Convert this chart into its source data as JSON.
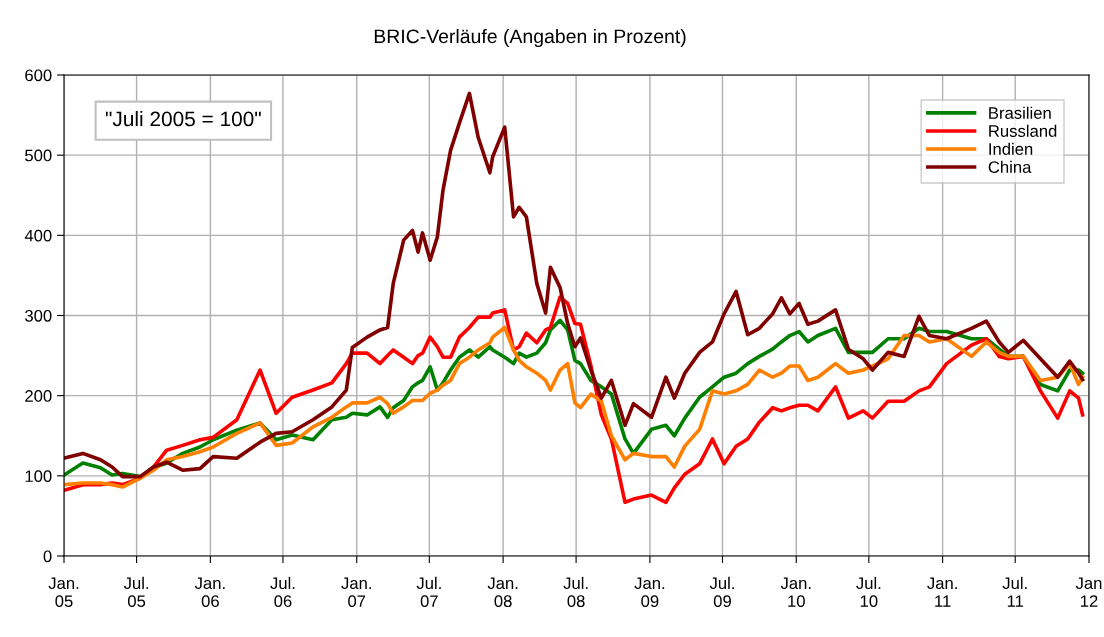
{
  "chart_data": {
    "type": "line",
    "title": "BRIC-Verläufe (Angaben in Prozent)",
    "annotations": [
      "\"Juli 2005 = 100\""
    ],
    "x": [
      "2005-01-01",
      "2005-02-17",
      "2005-04-02",
      "2005-05-01",
      "2005-05-27",
      "2005-07-10",
      "2005-08-12",
      "2005-09-14",
      "2005-10-24",
      "2005-12-06",
      "2006-01-08",
      "2006-03-08",
      "2006-05-05",
      "2006-06-14",
      "2006-07-24",
      "2006-09-14",
      "2006-10-31",
      "2006-12-06",
      "2006-12-21",
      "2007-01-27",
      "2007-02-28",
      "2007-03-19",
      "2007-04-02",
      "2007-04-28",
      "2007-05-20",
      "2007-06-03",
      "2007-06-14",
      "2007-07-03",
      "2007-07-21",
      "2007-08-04",
      "2007-08-23",
      "2007-09-14",
      "2007-10-09",
      "2007-10-31",
      "2007-11-29",
      "2007-12-06",
      "2008-01-05",
      "2008-01-27",
      "2008-02-10",
      "2008-02-28",
      "2008-03-25",
      "2008-04-16",
      "2008-04-28",
      "2008-05-22",
      "2008-06-10",
      "2008-06-28",
      "2008-07-12",
      "2008-08-07",
      "2008-09-02",
      "2008-09-27",
      "2008-10-31",
      "2008-11-21",
      "2009-01-05",
      "2009-02-10",
      "2009-03-03",
      "2009-03-29",
      "2009-05-05",
      "2009-06-06",
      "2009-07-05",
      "2009-08-04",
      "2009-09-02",
      "2009-10-01",
      "2009-11-03",
      "2009-11-25",
      "2009-12-16",
      "2010-01-08",
      "2010-01-30",
      "2010-02-24",
      "2010-04-09",
      "2010-05-11",
      "2010-06-17",
      "2010-07-10",
      "2010-08-18",
      "2010-09-27",
      "2010-11-03",
      "2010-11-29",
      "2011-01-11",
      "2011-03-14",
      "2011-04-20",
      "2011-05-22",
      "2011-06-14",
      "2011-07-21",
      "2011-09-02",
      "2011-10-15",
      "2011-11-14",
      "2011-12-06",
      "2011-12-16"
    ],
    "series": [
      {
        "name": "Brasilien",
        "color": "#008000",
        "values": [
          101,
          116,
          110,
          101,
          103,
          99,
          110,
          116,
          128,
          136,
          145,
          157,
          166,
          145,
          151,
          145,
          170,
          173,
          178,
          176,
          186,
          173,
          185,
          194,
          211,
          216,
          219,
          236,
          207,
          216,
          232,
          248,
          257,
          248,
          261,
          257,
          248,
          240,
          253,
          248,
          253,
          266,
          282,
          294,
          282,
          244,
          240,
          219,
          211,
          202,
          146,
          128,
          158,
          163,
          150,
          172,
          198,
          211,
          223,
          228,
          240,
          249,
          258,
          267,
          275,
          280,
          267,
          275,
          284,
          254,
          254,
          254,
          271,
          271,
          284,
          280,
          280,
          271,
          271,
          258,
          249,
          249,
          214,
          206,
          232,
          232,
          228
        ]
      },
      {
        "name": "Russland",
        "color": "#ff0000",
        "values": [
          82,
          89,
          89,
          91,
          89,
          97,
          111,
          132,
          138,
          145,
          148,
          170,
          232,
          178,
          198,
          207,
          216,
          240,
          253,
          253,
          240,
          250,
          257,
          248,
          240,
          250,
          253,
          273,
          261,
          248,
          248,
          273,
          285,
          298,
          298,
          303,
          307,
          257,
          261,
          278,
          266,
          282,
          285,
          323,
          315,
          290,
          289,
          237,
          176,
          146,
          67,
          71,
          76,
          67,
          85,
          102,
          115,
          146,
          115,
          137,
          146,
          167,
          185,
          181,
          185,
          188,
          188,
          181,
          211,
          172,
          181,
          172,
          193,
          193,
          206,
          211,
          240,
          263,
          271,
          249,
          246,
          249,
          206,
          172,
          206,
          197,
          176
        ]
      },
      {
        "name": "Indien",
        "color": "#ff7f00",
        "values": [
          89,
          91,
          91,
          89,
          86,
          97,
          107,
          120,
          124,
          130,
          136,
          153,
          166,
          138,
          141,
          161,
          173,
          186,
          191,
          191,
          198,
          190,
          178,
          186,
          194,
          194,
          194,
          203,
          207,
          213,
          219,
          240,
          248,
          257,
          266,
          273,
          285,
          257,
          244,
          236,
          228,
          219,
          207,
          232,
          240,
          191,
          185,
          202,
          193,
          150,
          120,
          128,
          124,
          124,
          111,
          137,
          158,
          206,
          202,
          206,
          214,
          232,
          223,
          228,
          237,
          237,
          219,
          223,
          240,
          228,
          232,
          237,
          246,
          275,
          275,
          267,
          271,
          249,
          267,
          254,
          249,
          249,
          219,
          223,
          240,
          214,
          223
        ]
      },
      {
        "name": "China",
        "color": "#800000",
        "values": [
          122,
          128,
          120,
          111,
          99,
          99,
          111,
          117,
          107,
          109,
          124,
          122,
          142,
          153,
          155,
          170,
          186,
          207,
          260,
          273,
          282,
          285,
          340,
          394,
          406,
          379,
          403,
          369,
          398,
          456,
          506,
          540,
          577,
          522,
          478,
          498,
          535,
          423,
          435,
          423,
          340,
          303,
          360,
          335,
          290,
          261,
          272,
          232,
          197,
          219,
          163,
          190,
          173,
          223,
          197,
          228,
          254,
          267,
          302,
          330,
          276,
          284,
          302,
          322,
          302,
          315,
          289,
          293,
          307,
          258,
          246,
          232,
          254,
          249,
          299,
          275,
          271,
          284,
          293,
          267,
          254,
          269,
          246,
          223,
          243,
          228,
          220
        ]
      }
    ],
    "xlim": [
      "2005-01-01",
      "2012-01-01"
    ],
    "xticks": [
      {
        "value": "2005-01-01",
        "label": "Jan.\n05"
      },
      {
        "value": "2005-07-01",
        "label": "Jul.\n05"
      },
      {
        "value": "2006-01-01",
        "label": "Jan.\n06"
      },
      {
        "value": "2006-07-01",
        "label": "Jul.\n06"
      },
      {
        "value": "2007-01-01",
        "label": "Jan.\n07"
      },
      {
        "value": "2007-07-01",
        "label": "Jul.\n07"
      },
      {
        "value": "2008-01-01",
        "label": "Jan.\n08"
      },
      {
        "value": "2008-07-01",
        "label": "Jul.\n08"
      },
      {
        "value": "2009-01-01",
        "label": "Jan.\n09"
      },
      {
        "value": "2009-07-01",
        "label": "Jul.\n09"
      },
      {
        "value": "2010-01-01",
        "label": "Jan.\n10"
      },
      {
        "value": "2010-07-01",
        "label": "Jul.\n10"
      },
      {
        "value": "2011-01-01",
        "label": "Jan.\n11"
      },
      {
        "value": "2011-07-01",
        "label": "Jul.\n11"
      },
      {
        "value": "2012-01-01",
        "label": "Jan\n12"
      }
    ],
    "ylim": [
      0,
      600
    ],
    "yticks": [
      0,
      100,
      200,
      300,
      400,
      500,
      600
    ],
    "grid": true,
    "legend": "top right",
    "marker": "none",
    "line_style": "solid"
  }
}
